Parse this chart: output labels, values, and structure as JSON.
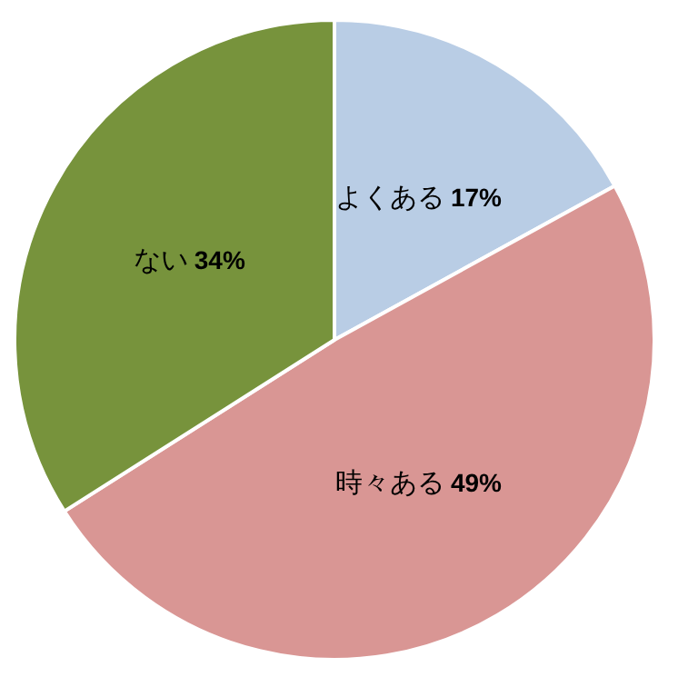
{
  "chart_data": {
    "type": "pie",
    "categories": [
      "よくある",
      "時々ある",
      "ない"
    ],
    "values": [
      17,
      49,
      34
    ],
    "value_labels": [
      "17%",
      "49%",
      "34%"
    ],
    "colors": [
      "#b9cde5",
      "#d99694",
      "#77933c"
    ],
    "legend": false
  }
}
